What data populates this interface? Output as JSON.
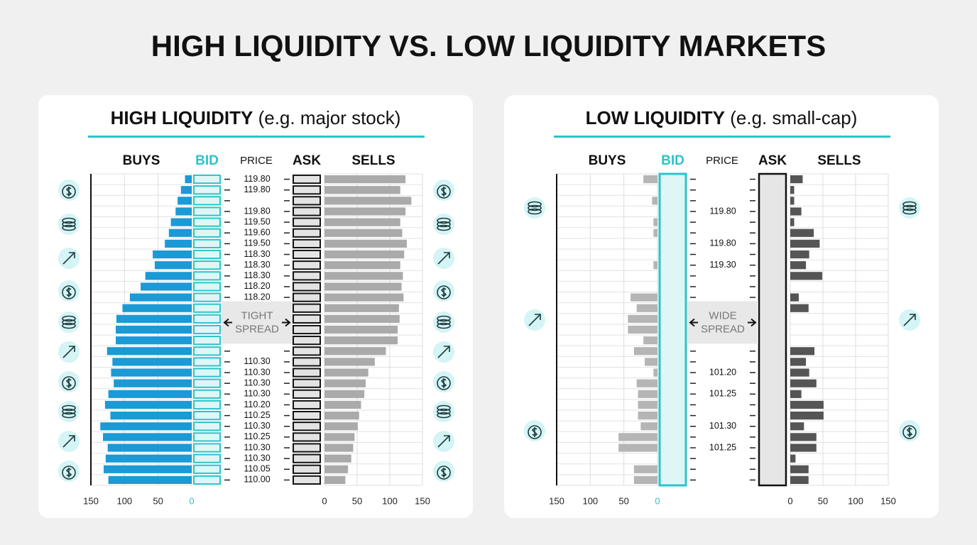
{
  "title": "HIGH LIQUIDITY VS. LOW LIQUIDITY MARKETS",
  "chart_data": [
    {
      "type": "orderbook",
      "title": "HIGH LIQUIDITY",
      "subtitle": "(e.g. major stock)",
      "bid_label": "BID",
      "price_label": "PRICE",
      "ask_label": "ASK",
      "bid_color": "#2bc4c8",
      "quote_boxes": "rows",
      "spread_label": [
        "TIGHT",
        "SPREAD"
      ],
      "prices": [
        "119.80",
        "119.80",
        null,
        "119.80",
        "119.50",
        "119.60",
        "119.50",
        "118.30",
        "118.30",
        "118.30",
        "118.20",
        "118.20",
        null,
        null,
        null,
        null,
        null,
        "110.30",
        "110.30",
        "110.30",
        "110.30",
        "110.20",
        "110.25",
        "110.30",
        "110.25",
        "110.30",
        "110.30",
        "110.05",
        "110.00"
      ],
      "series": [
        {
          "name": "BUYS",
          "color": "#1b9ad6",
          "xlim": [
            150,
            0
          ],
          "xticks": [
            150,
            100,
            50,
            0
          ],
          "values": [
            10,
            16,
            21,
            24,
            31,
            34,
            40,
            58,
            55,
            69,
            76,
            92,
            103,
            112,
            113,
            113,
            126,
            118,
            120,
            116,
            124,
            129,
            121,
            136,
            132,
            125,
            128,
            131,
            124
          ]
        },
        {
          "name": "SELLS",
          "color": "#aaaaaa",
          "xlim": [
            0,
            150
          ],
          "xticks": [
            0,
            50,
            100,
            150
          ],
          "values": [
            124,
            116,
            133,
            124,
            116,
            119,
            126,
            122,
            116,
            120,
            118,
            121,
            114,
            115,
            112,
            112,
            94,
            77,
            67,
            63,
            61,
            56,
            53,
            51,
            46,
            44,
            41,
            36,
            32
          ]
        }
      ]
    },
    {
      "type": "orderbook",
      "title": "LOW LIQUIDITY",
      "subtitle": "(e.g. small-cap)",
      "bid_label": "BID",
      "price_label": "PRICE",
      "ask_label": "ASK",
      "bid_color": "#2bc4c8",
      "quote_boxes": "column",
      "spread_label": [
        "WIDE",
        "SPREAD"
      ],
      "prices": [
        null,
        null,
        null,
        "119.80",
        null,
        null,
        "119.80",
        null,
        "119.30",
        null,
        null,
        null,
        null,
        null,
        null,
        null,
        null,
        null,
        "101.20",
        null,
        "101.25",
        null,
        null,
        "101.30",
        null,
        "101.25",
        null,
        null,
        null
      ],
      "series": [
        {
          "name": "BUYS",
          "color": "#b5b5b5",
          "xlim": [
            150,
            0
          ],
          "xticks": [
            150,
            100,
            50,
            0
          ],
          "values": [
            21,
            0,
            8,
            0,
            6,
            6,
            0,
            0,
            6,
            0,
            0,
            40,
            31,
            44,
            44,
            21,
            35,
            19,
            6,
            31,
            29,
            29,
            29,
            25,
            58,
            58,
            0,
            35,
            35
          ]
        },
        {
          "name": "SELLS",
          "color": "#555555",
          "xlim": [
            0,
            150
          ],
          "xticks": [
            0,
            50,
            100,
            150
          ],
          "values": [
            19,
            6,
            6,
            17,
            6,
            36,
            45,
            29,
            24,
            49,
            0,
            13,
            28,
            0,
            0,
            0,
            37,
            24,
            29,
            40,
            17,
            51,
            51,
            21,
            40,
            40,
            8,
            28,
            28
          ]
        }
      ]
    }
  ]
}
